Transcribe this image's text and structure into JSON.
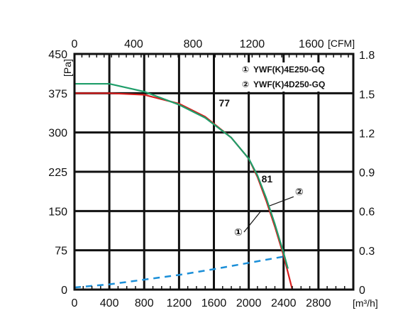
{
  "chart_data": {
    "type": "line",
    "x_axis_bottom": {
      "unit": "[m³/h]",
      "range": [
        0,
        3200
      ],
      "ticks": [
        0,
        400,
        800,
        1200,
        1600,
        2000,
        2400,
        2800
      ],
      "tick_labels": [
        "0",
        "400",
        "800",
        "1200",
        "1600",
        "2000",
        "2400",
        "2800"
      ]
    },
    "x_axis_top": {
      "unit": "[CFM]",
      "ticks": [
        0,
        400,
        800,
        1200,
        1600
      ],
      "tick_labels": [
        "0",
        "400",
        "800",
        "1200",
        "1600"
      ]
    },
    "y_axis_left": {
      "unit": "[Pa]",
      "range": [
        0,
        450
      ],
      "ticks": [
        0,
        75,
        150,
        225,
        300,
        375,
        450
      ],
      "tick_labels": [
        "0",
        "75",
        "150",
        "225",
        "300",
        "375",
        "450"
      ]
    },
    "y_axis_right": {
      "unit": "[in. wg]",
      "ticks": [
        0,
        0.3,
        0.6,
        0.9,
        1.2,
        1.5,
        1.8
      ],
      "tick_labels": [
        "0",
        "0.3",
        "0.6",
        "0.9",
        "1.2",
        "1.5",
        "1.8"
      ]
    },
    "grid": true,
    "legend_position": "top-right",
    "legend": [
      {
        "marker": "①",
        "label": "YWF(K)4E250-GQ"
      },
      {
        "marker": "②",
        "label": "YWF(K)4D250-GQ"
      }
    ],
    "series": [
      {
        "color": "#d81e1e",
        "x": [
          0,
          400,
          800,
          1200,
          1500,
          1800,
          2000,
          2100,
          2200,
          2300,
          2400,
          2500
        ],
        "y": [
          375,
          375,
          372,
          355,
          330,
          290,
          250,
          215,
          170,
          120,
          65,
          0
        ]
      },
      {
        "color": "#1f9e6a",
        "x": [
          0,
          400,
          800,
          1200,
          1500,
          1800,
          2000,
          2100,
          2200,
          2300,
          2400,
          2450
        ],
        "y": [
          393,
          393,
          378,
          353,
          328,
          290,
          250,
          218,
          175,
          125,
          70,
          40
        ]
      }
    ],
    "system_line": {
      "color": "#1b8fd8",
      "style": "dashed",
      "x": [
        0,
        400,
        800,
        1200,
        1600,
        2000,
        2400
      ],
      "y": [
        4,
        10,
        19,
        28,
        39,
        51,
        63
      ]
    },
    "annotations": [
      {
        "text": "77",
        "x": 1720,
        "y": 350
      },
      {
        "text": "81",
        "x": 2210,
        "y": 205
      },
      {
        "text": "①",
        "x": 1880,
        "y": 103
      },
      {
        "text": "②",
        "x": 2580,
        "y": 180
      }
    ]
  }
}
